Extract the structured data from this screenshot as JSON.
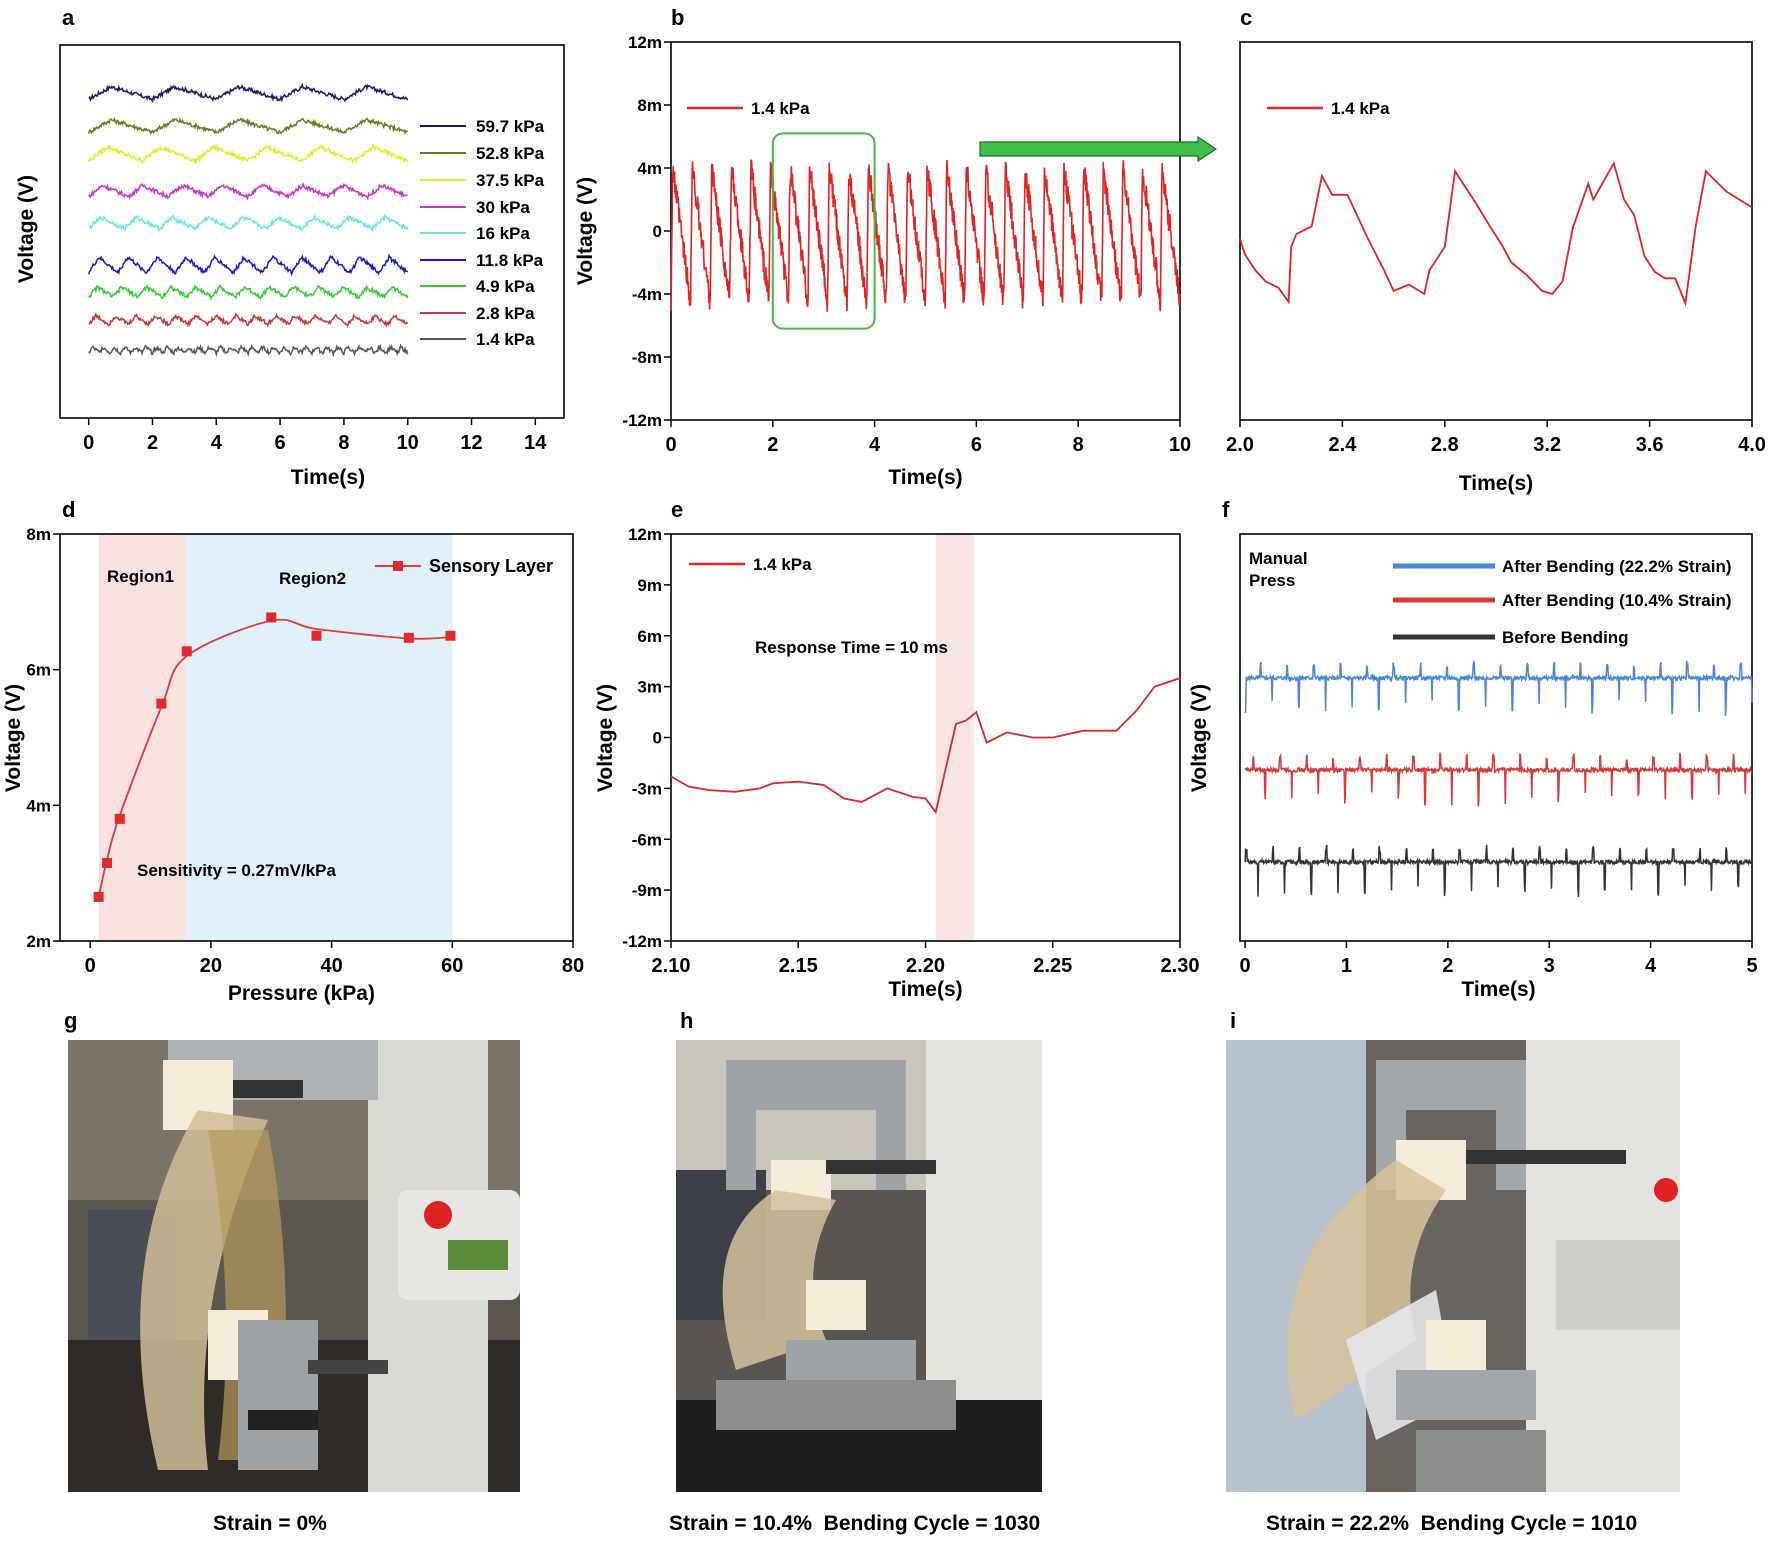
{
  "chart_data": [
    {
      "panel": "a",
      "type": "line",
      "xlabel": "Time(s)",
      "ylabel": "Voltage (V)",
      "xlim": [
        0,
        15
      ],
      "xticks": [
        "0",
        "2",
        "4",
        "6",
        "8",
        "10",
        "12",
        "14"
      ],
      "time_range": [
        0,
        10
      ],
      "series": [
        {
          "name": "59.7 kPa",
          "color": "#1a1a6e",
          "cycles": 5,
          "amplitude": 0.9
        },
        {
          "name": "52.8 kPa",
          "color": "#6b7a1e",
          "cycles": 5,
          "amplitude": 0.9
        },
        {
          "name": "37.5 kPa",
          "color": "#e0ee2a",
          "cycles": 6,
          "amplitude": 1.0
        },
        {
          "name": "30 kPa",
          "color": "#cc33cc",
          "cycles": 8,
          "amplitude": 0.8
        },
        {
          "name": "16 kPa",
          "color": "#66e6e6",
          "cycles": 9,
          "amplitude": 0.8
        },
        {
          "name": "11.8 kPa",
          "color": "#1a1acc",
          "cycles": 11,
          "amplitude": 1.1
        },
        {
          "name": "4.9 kPa",
          "color": "#33cc33",
          "cycles": 13,
          "amplitude": 0.7
        },
        {
          "name": "2.8 kPa",
          "color": "#cc3333",
          "cycles": 16,
          "amplitude": 0.6
        },
        {
          "name": "1.4 kPa",
          "color": "#555555",
          "cycles": 30,
          "amplitude": 0.4
        }
      ]
    },
    {
      "panel": "b",
      "type": "line",
      "xlabel": "Time(s)",
      "ylabel": "Voltage (V)",
      "xlim": [
        0,
        10
      ],
      "ylim": [
        -12,
        12
      ],
      "xticks": [
        "0",
        "2",
        "4",
        "6",
        "8",
        "10"
      ],
      "yticks": [
        "12m",
        "8m",
        "4m",
        "0",
        "-4m",
        "-8m",
        "-12m"
      ],
      "legend": "1.4 kPa",
      "color": "#e32222",
      "peaks_per_second": 2.6,
      "peak_mV": 4,
      "trough_mV": -4.5,
      "highlight_x": [
        2,
        4
      ]
    },
    {
      "panel": "c",
      "type": "line",
      "xlabel": "Time(s)",
      "xlim": [
        2.0,
        4.0
      ],
      "xticks": [
        "2.0",
        "2.4",
        "2.8",
        "3.2",
        "3.6",
        "4.0"
      ],
      "legend": "1.4 kPa",
      "color": "#e32222",
      "x": [
        2.0,
        2.02,
        2.06,
        2.1,
        2.15,
        2.19,
        2.2,
        2.22,
        2.28,
        2.32,
        2.36,
        2.42,
        2.5,
        2.56,
        2.6,
        2.66,
        2.72,
        2.74,
        2.8,
        2.84,
        2.92,
        2.98,
        3.02,
        3.06,
        3.12,
        3.18,
        3.22,
        3.26,
        3.3,
        3.36,
        3.38,
        3.46,
        3.5,
        3.54,
        3.58,
        3.62,
        3.66,
        3.7,
        3.74,
        3.78,
        3.82,
        3.9,
        4.0
      ],
      "y": [
        -0.5,
        -1.5,
        -2.5,
        -3.2,
        -3.6,
        -4.5,
        -1.0,
        -0.2,
        0.3,
        3.5,
        2.3,
        2.3,
        -0.5,
        -2.4,
        -3.8,
        -3.4,
        -4.0,
        -2.5,
        -1.0,
        3.8,
        1.8,
        0.2,
        -0.8,
        -2.0,
        -2.8,
        -3.8,
        -4.0,
        -3.2,
        0.2,
        3.0,
        2.0,
        4.3,
        2.0,
        1.0,
        -1.6,
        -2.6,
        -3.0,
        -3.0,
        -4.6,
        0.3,
        3.8,
        2.5,
        1.5
      ]
    },
    {
      "panel": "d",
      "type": "scatter",
      "xlabel": "Pressure (kPa)",
      "ylabel": "Voltage (V)",
      "xlim": [
        -5,
        80
      ],
      "ylim": [
        2,
        8
      ],
      "xticks": [
        "0",
        "20",
        "40",
        "60",
        "80"
      ],
      "yticks": [
        "8m",
        "6m",
        "4m",
        "2m"
      ],
      "series": [
        {
          "name": "Sensory Layer",
          "x": [
            1.4,
            2.8,
            4.9,
            11.8,
            16,
            30,
            37.5,
            52.8,
            59.7
          ],
          "y": [
            2.65,
            3.15,
            3.8,
            5.5,
            6.27,
            6.77,
            6.5,
            6.47,
            6.5
          ]
        }
      ],
      "annotations": [
        "Region1",
        "Region2",
        "Sensitivity = 0.27mV/kPa"
      ],
      "region1": [
        1.4,
        16
      ],
      "region2": [
        16,
        60
      ]
    },
    {
      "panel": "e",
      "type": "line",
      "xlabel": "Time(s)",
      "ylabel": "Voltage (V)",
      "xlim": [
        2.1,
        2.3
      ],
      "ylim": [
        -12,
        12
      ],
      "xticks": [
        "2.10",
        "2.15",
        "2.20",
        "2.25",
        "2.30"
      ],
      "yticks": [
        "12m",
        "9m",
        "6m",
        "3m",
        "0",
        "-3m",
        "-6m",
        "-9m",
        "-12m"
      ],
      "legend": "1.4 kPa",
      "annotation": "Response Time = 10 ms",
      "highlight_x": [
        2.204,
        2.219
      ],
      "x": [
        2.1,
        2.107,
        2.115,
        2.125,
        2.135,
        2.14,
        2.15,
        2.16,
        2.168,
        2.175,
        2.185,
        2.195,
        2.2,
        2.204,
        2.212,
        2.216,
        2.22,
        2.224,
        2.232,
        2.242,
        2.25,
        2.262,
        2.27,
        2.275,
        2.283,
        2.29,
        2.3
      ],
      "y": [
        -2.3,
        -2.9,
        -3.1,
        -3.2,
        -3.0,
        -2.7,
        -2.6,
        -2.8,
        -3.6,
        -3.8,
        -3.0,
        -3.5,
        -3.6,
        -4.4,
        0.8,
        1.0,
        1.5,
        -0.3,
        0.3,
        0.0,
        0.0,
        0.4,
        0.4,
        0.4,
        1.6,
        3.0,
        3.5
      ]
    },
    {
      "panel": "f",
      "type": "line",
      "xlabel": "Time(s)",
      "ylabel": "Voltage (V)",
      "xlim": [
        0,
        5
      ],
      "xticks": [
        "0",
        "1",
        "2",
        "3",
        "4",
        "5"
      ],
      "annotation": "Manual\nPress",
      "series": [
        {
          "name": "After Bending (22.2% Strain)",
          "color": "#4a86d8",
          "spikes_per_second": 3.8,
          "spike_direction": "down"
        },
        {
          "name": "After Bending (10.4% Strain)",
          "color": "#d83a3a",
          "spikes_per_second": 3.8,
          "spike_direction": "down"
        },
        {
          "name": "Before Bending",
          "color": "#333333",
          "spikes_per_second": 3.8,
          "spike_direction": "down"
        }
      ]
    }
  ],
  "panel_labels": [
    "a",
    "b",
    "c",
    "d",
    "e",
    "f",
    "g",
    "h",
    "i"
  ],
  "photos": [
    {
      "label": "g",
      "caption": "Strain = 0%",
      "depicts": "tensile-tester-flat-sensor-photo"
    },
    {
      "label": "h",
      "caption": "Strain = 10.4%  Bending Cycle = 1030",
      "depicts": "tensile-tester-bent-sensor-photo"
    },
    {
      "label": "i",
      "caption": "Strain = 22.2%  Bending Cycle = 1010",
      "depicts": "tensile-tester-strongly-bent-sensor-photo"
    }
  ]
}
